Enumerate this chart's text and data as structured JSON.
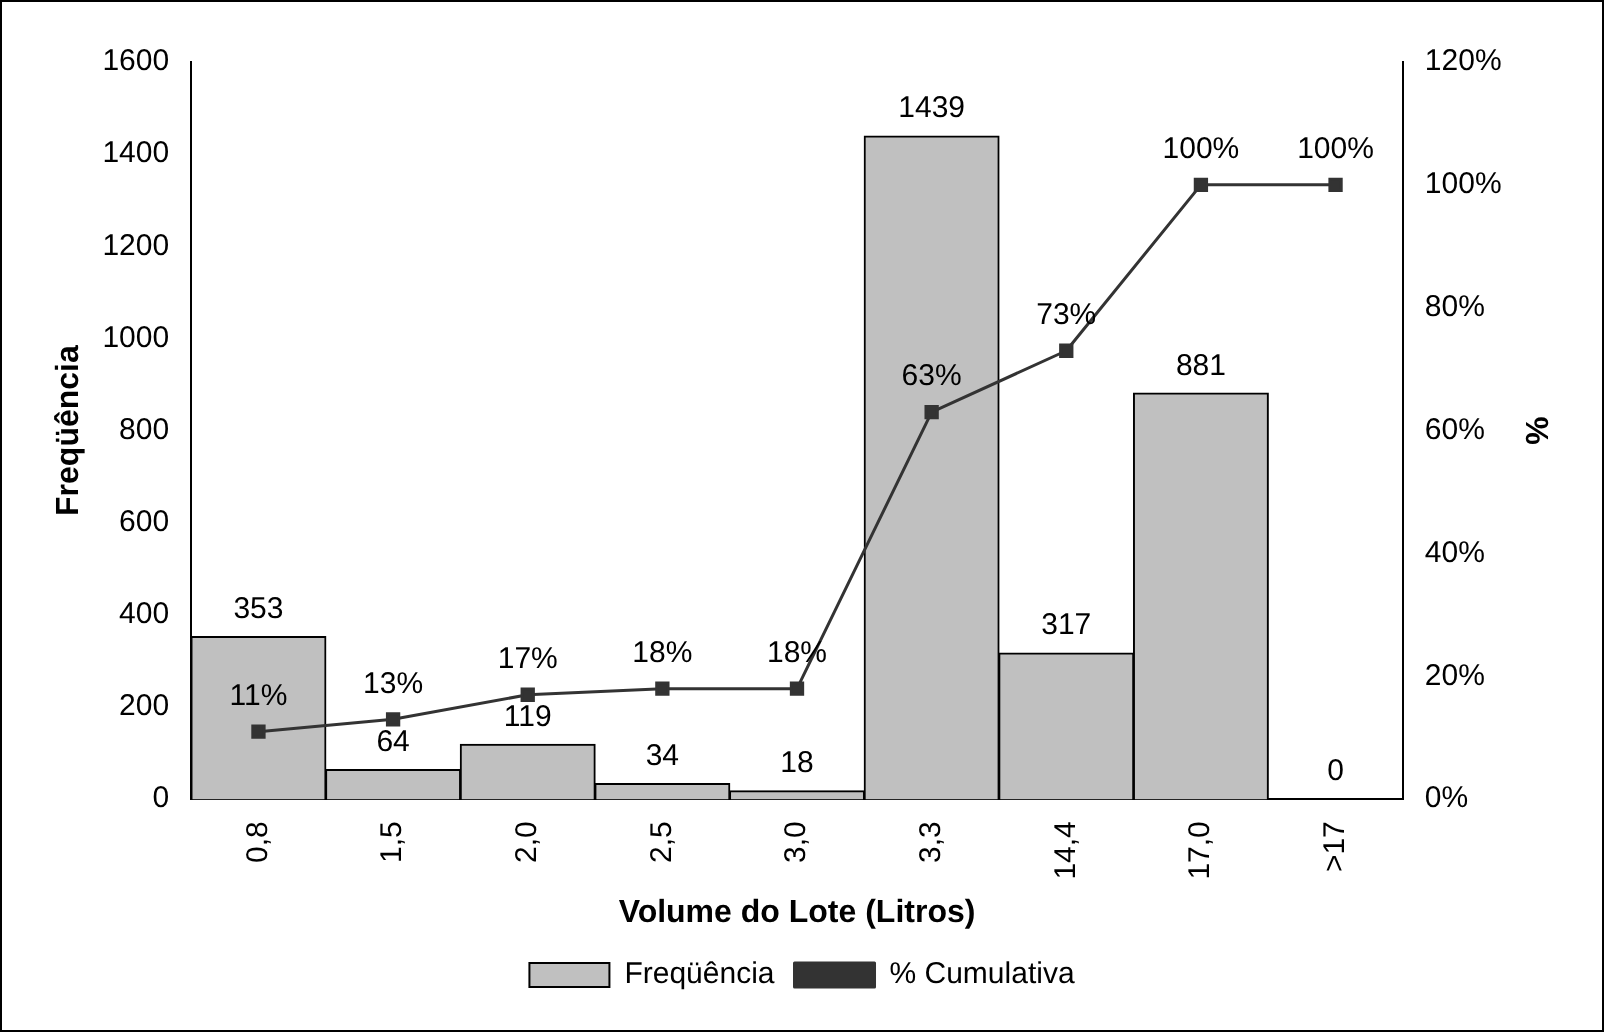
{
  "chart_data": {
    "type": "bar",
    "xlabel": "Volume do Lote (Litros)",
    "ylabel": "Freqüência",
    "y2label": "%",
    "categories": [
      "0,8",
      "1,5",
      "2,0",
      "2,5",
      "3,0",
      "3,3",
      "14,4",
      "17,0",
      ">17"
    ],
    "series": [
      {
        "name": "Freqüência",
        "color": "#c0c0c0",
        "values": [
          353,
          64,
          119,
          34,
          18,
          1439,
          317,
          881,
          0
        ],
        "value_labels": [
          "353",
          "64",
          "119",
          "34",
          "18",
          "1439",
          "317",
          "881",
          "0"
        ]
      },
      {
        "name": "% Cumulativa",
        "type": "line",
        "axis": "y2",
        "color": "#333333",
        "marker": "square",
        "values": [
          11,
          13,
          17,
          18,
          18,
          63,
          73,
          100,
          100
        ],
        "value_labels": [
          "11%",
          "13%",
          "17%",
          "18%",
          "18%",
          "63%",
          "73%",
          "100%",
          "100%"
        ]
      }
    ],
    "ylim": [
      0,
      1600
    ],
    "yticks": [
      0,
      200,
      400,
      600,
      800,
      1000,
      1200,
      1400,
      1600
    ],
    "y2lim": [
      0,
      120
    ],
    "y2ticks": [
      {
        "value": 0,
        "label": "0%"
      },
      {
        "value": 20,
        "label": "20%"
      },
      {
        "value": 40,
        "label": "40%"
      },
      {
        "value": 60,
        "label": "60%"
      },
      {
        "value": 80,
        "label": "80%"
      },
      {
        "value": 100,
        "label": "100%"
      },
      {
        "value": 120,
        "label": "120%"
      }
    ],
    "grid": false,
    "legend": "bottom"
  }
}
